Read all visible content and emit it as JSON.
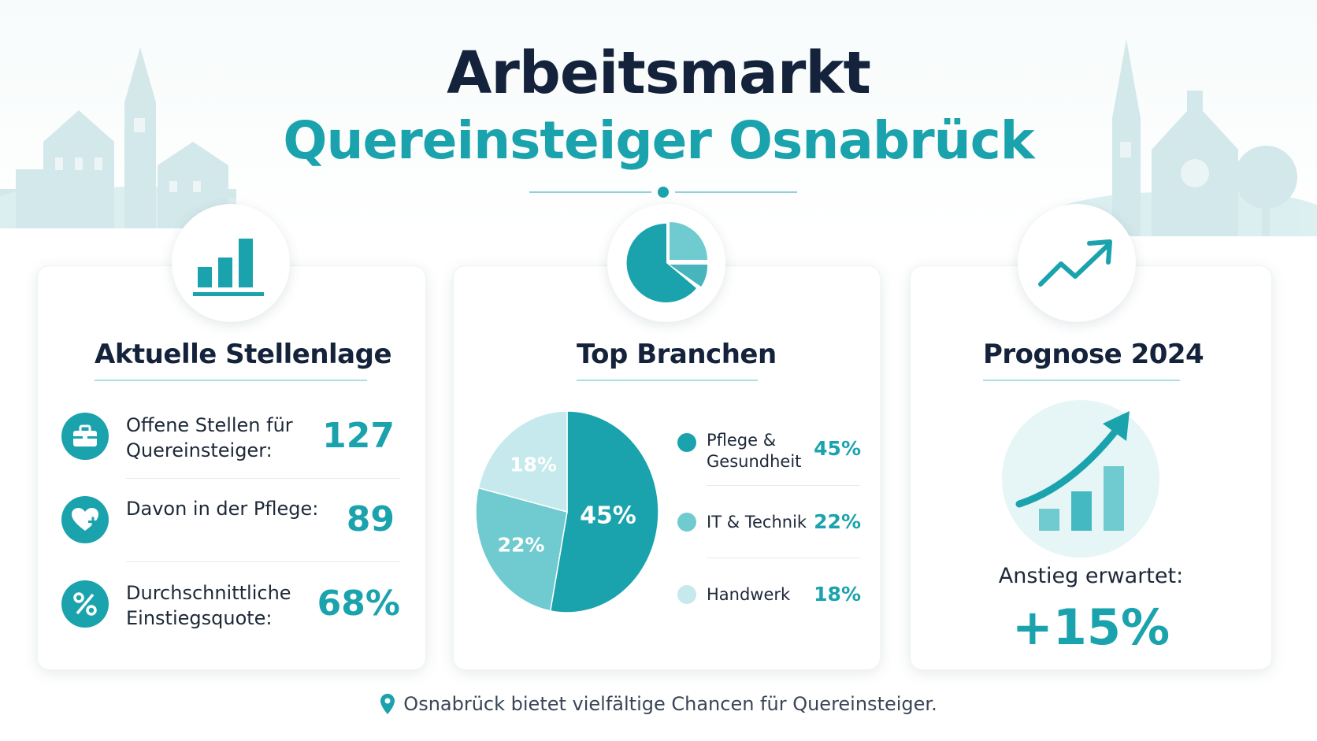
{
  "header": {
    "title_line1": "Arbeitsmarkt",
    "title_line2": "Quereinsteiger Osnabrück"
  },
  "colors": {
    "navy": "#14233b",
    "teal": "#1aa3ad",
    "teal_mid": "#6fcbd0",
    "teal_light": "#c5e9ec"
  },
  "cards": {
    "stellenlage": {
      "title": "Aktuelle Stellenlage",
      "icon": "bar-chart-icon",
      "stats": [
        {
          "label": "Offene Stellen für Quereinsteiger:",
          "value": "127",
          "icon": "briefcase-icon"
        },
        {
          "label": "Davon in der Pflege:",
          "value": "89",
          "icon": "heart-plus-icon"
        },
        {
          "label": "Durchschnittliche Einstiegsquote:",
          "value": "68%",
          "icon": "percent-icon"
        }
      ]
    },
    "branchen": {
      "title": "Top Branchen",
      "icon": "pie-chart-icon"
    },
    "prognose": {
      "title": "Prognose 2024",
      "icon": "trend-up-icon",
      "label": "Anstieg erwartet:",
      "value": "+15%"
    }
  },
  "chart_data": {
    "type": "pie",
    "title": "Top Branchen",
    "categories": [
      "Pflege & Gesundheit",
      "IT & Technik",
      "Handwerk"
    ],
    "values": [
      45,
      22,
      18
    ],
    "labels": [
      "45%",
      "22%",
      "18%"
    ],
    "colors": [
      "#1aa3ad",
      "#6fcbd0",
      "#c5e9ec"
    ],
    "legend_position": "right"
  },
  "footer": {
    "text": "Osnabrück bietet vielfältige Chancen für Quereinsteiger.",
    "icon": "location-pin-icon"
  }
}
